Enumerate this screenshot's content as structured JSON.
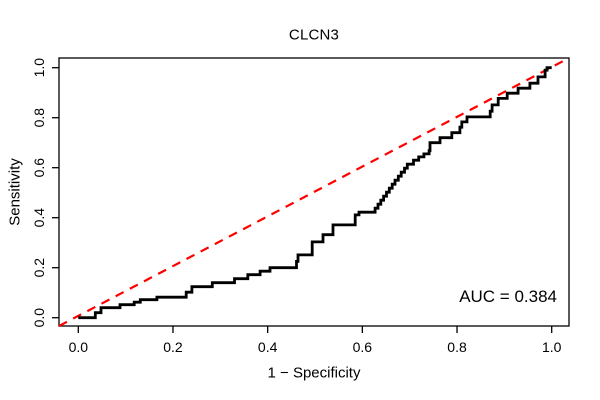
{
  "chart_data": {
    "type": "line",
    "subtype": "roc-step-curve",
    "title": "CLCN3",
    "xlabel": "1 − Specificity",
    "ylabel": "Sensitivity",
    "annotation": {
      "text": "AUC = 0.384",
      "position": "bottom-right"
    },
    "auc": 0.384,
    "xlim": [
      0.0,
      1.0
    ],
    "ylim": [
      0.0,
      1.0
    ],
    "xticks": [
      0.0,
      0.2,
      0.4,
      0.6,
      0.8,
      1.0
    ],
    "yticks": [
      0.0,
      0.2,
      0.4,
      0.6,
      0.8,
      1.0
    ],
    "grid": false,
    "legend": "none",
    "frame_color": "#000000",
    "series": [
      {
        "name": "ROC curve",
        "style": "step",
        "color": "#000000",
        "line_width": 2.8,
        "points": [
          [
            0.0,
            0.0
          ],
          [
            0.036,
            0.0
          ],
          [
            0.036,
            0.02
          ],
          [
            0.048,
            0.02
          ],
          [
            0.048,
            0.04
          ],
          [
            0.088,
            0.04
          ],
          [
            0.088,
            0.052
          ],
          [
            0.118,
            0.052
          ],
          [
            0.118,
            0.062
          ],
          [
            0.131,
            0.062
          ],
          [
            0.131,
            0.072
          ],
          [
            0.166,
            0.072
          ],
          [
            0.166,
            0.082
          ],
          [
            0.228,
            0.082
          ],
          [
            0.228,
            0.102
          ],
          [
            0.24,
            0.102
          ],
          [
            0.24,
            0.124
          ],
          [
            0.283,
            0.124
          ],
          [
            0.283,
            0.14
          ],
          [
            0.33,
            0.14
          ],
          [
            0.33,
            0.156
          ],
          [
            0.358,
            0.156
          ],
          [
            0.358,
            0.172
          ],
          [
            0.384,
            0.172
          ],
          [
            0.384,
            0.186
          ],
          [
            0.405,
            0.186
          ],
          [
            0.405,
            0.2
          ],
          [
            0.461,
            0.2
          ],
          [
            0.461,
            0.225
          ],
          [
            0.464,
            0.225
          ],
          [
            0.464,
            0.251
          ],
          [
            0.494,
            0.251
          ],
          [
            0.494,
            0.303
          ],
          [
            0.517,
            0.303
          ],
          [
            0.517,
            0.332
          ],
          [
            0.538,
            0.332
          ],
          [
            0.538,
            0.371
          ],
          [
            0.585,
            0.371
          ],
          [
            0.585,
            0.411
          ],
          [
            0.593,
            0.411
          ],
          [
            0.593,
            0.422
          ],
          [
            0.62,
            0.422
          ],
          [
            0.627,
            0.438
          ],
          [
            0.633,
            0.454
          ],
          [
            0.639,
            0.47
          ],
          [
            0.645,
            0.486
          ],
          [
            0.651,
            0.502
          ],
          [
            0.657,
            0.518
          ],
          [
            0.663,
            0.534
          ],
          [
            0.669,
            0.55
          ],
          [
            0.676,
            0.566
          ],
          [
            0.682,
            0.582
          ],
          [
            0.689,
            0.598
          ],
          [
            0.695,
            0.614
          ],
          [
            0.708,
            0.63
          ],
          [
            0.719,
            0.643
          ],
          [
            0.73,
            0.655
          ],
          [
            0.741,
            0.668
          ],
          [
            0.743,
            0.668
          ],
          [
            0.743,
            0.7
          ],
          [
            0.764,
            0.7
          ],
          [
            0.764,
            0.72
          ],
          [
            0.789,
            0.72
          ],
          [
            0.789,
            0.74
          ],
          [
            0.806,
            0.74
          ],
          [
            0.806,
            0.762
          ],
          [
            0.81,
            0.762
          ],
          [
            0.81,
            0.783
          ],
          [
            0.821,
            0.783
          ],
          [
            0.821,
            0.803
          ],
          [
            0.87,
            0.803
          ],
          [
            0.87,
            0.826
          ],
          [
            0.874,
            0.826
          ],
          [
            0.874,
            0.851
          ],
          [
            0.887,
            0.851
          ],
          [
            0.887,
            0.877
          ],
          [
            0.906,
            0.877
          ],
          [
            0.906,
            0.898
          ],
          [
            0.929,
            0.898
          ],
          [
            0.929,
            0.918
          ],
          [
            0.954,
            0.918
          ],
          [
            0.954,
            0.938
          ],
          [
            0.971,
            0.938
          ],
          [
            0.971,
            0.963
          ],
          [
            0.986,
            0.963
          ],
          [
            0.986,
            0.99
          ],
          [
            0.99,
            0.99
          ],
          [
            0.99,
            1.0
          ],
          [
            1.0,
            1.0
          ]
        ]
      },
      {
        "name": "Chance diagonal",
        "style": "dashed",
        "color": "#FF0000",
        "line_width": 2.2,
        "from": [
          0.0,
          0.0
        ],
        "to": [
          1.0,
          1.0
        ]
      }
    ]
  }
}
